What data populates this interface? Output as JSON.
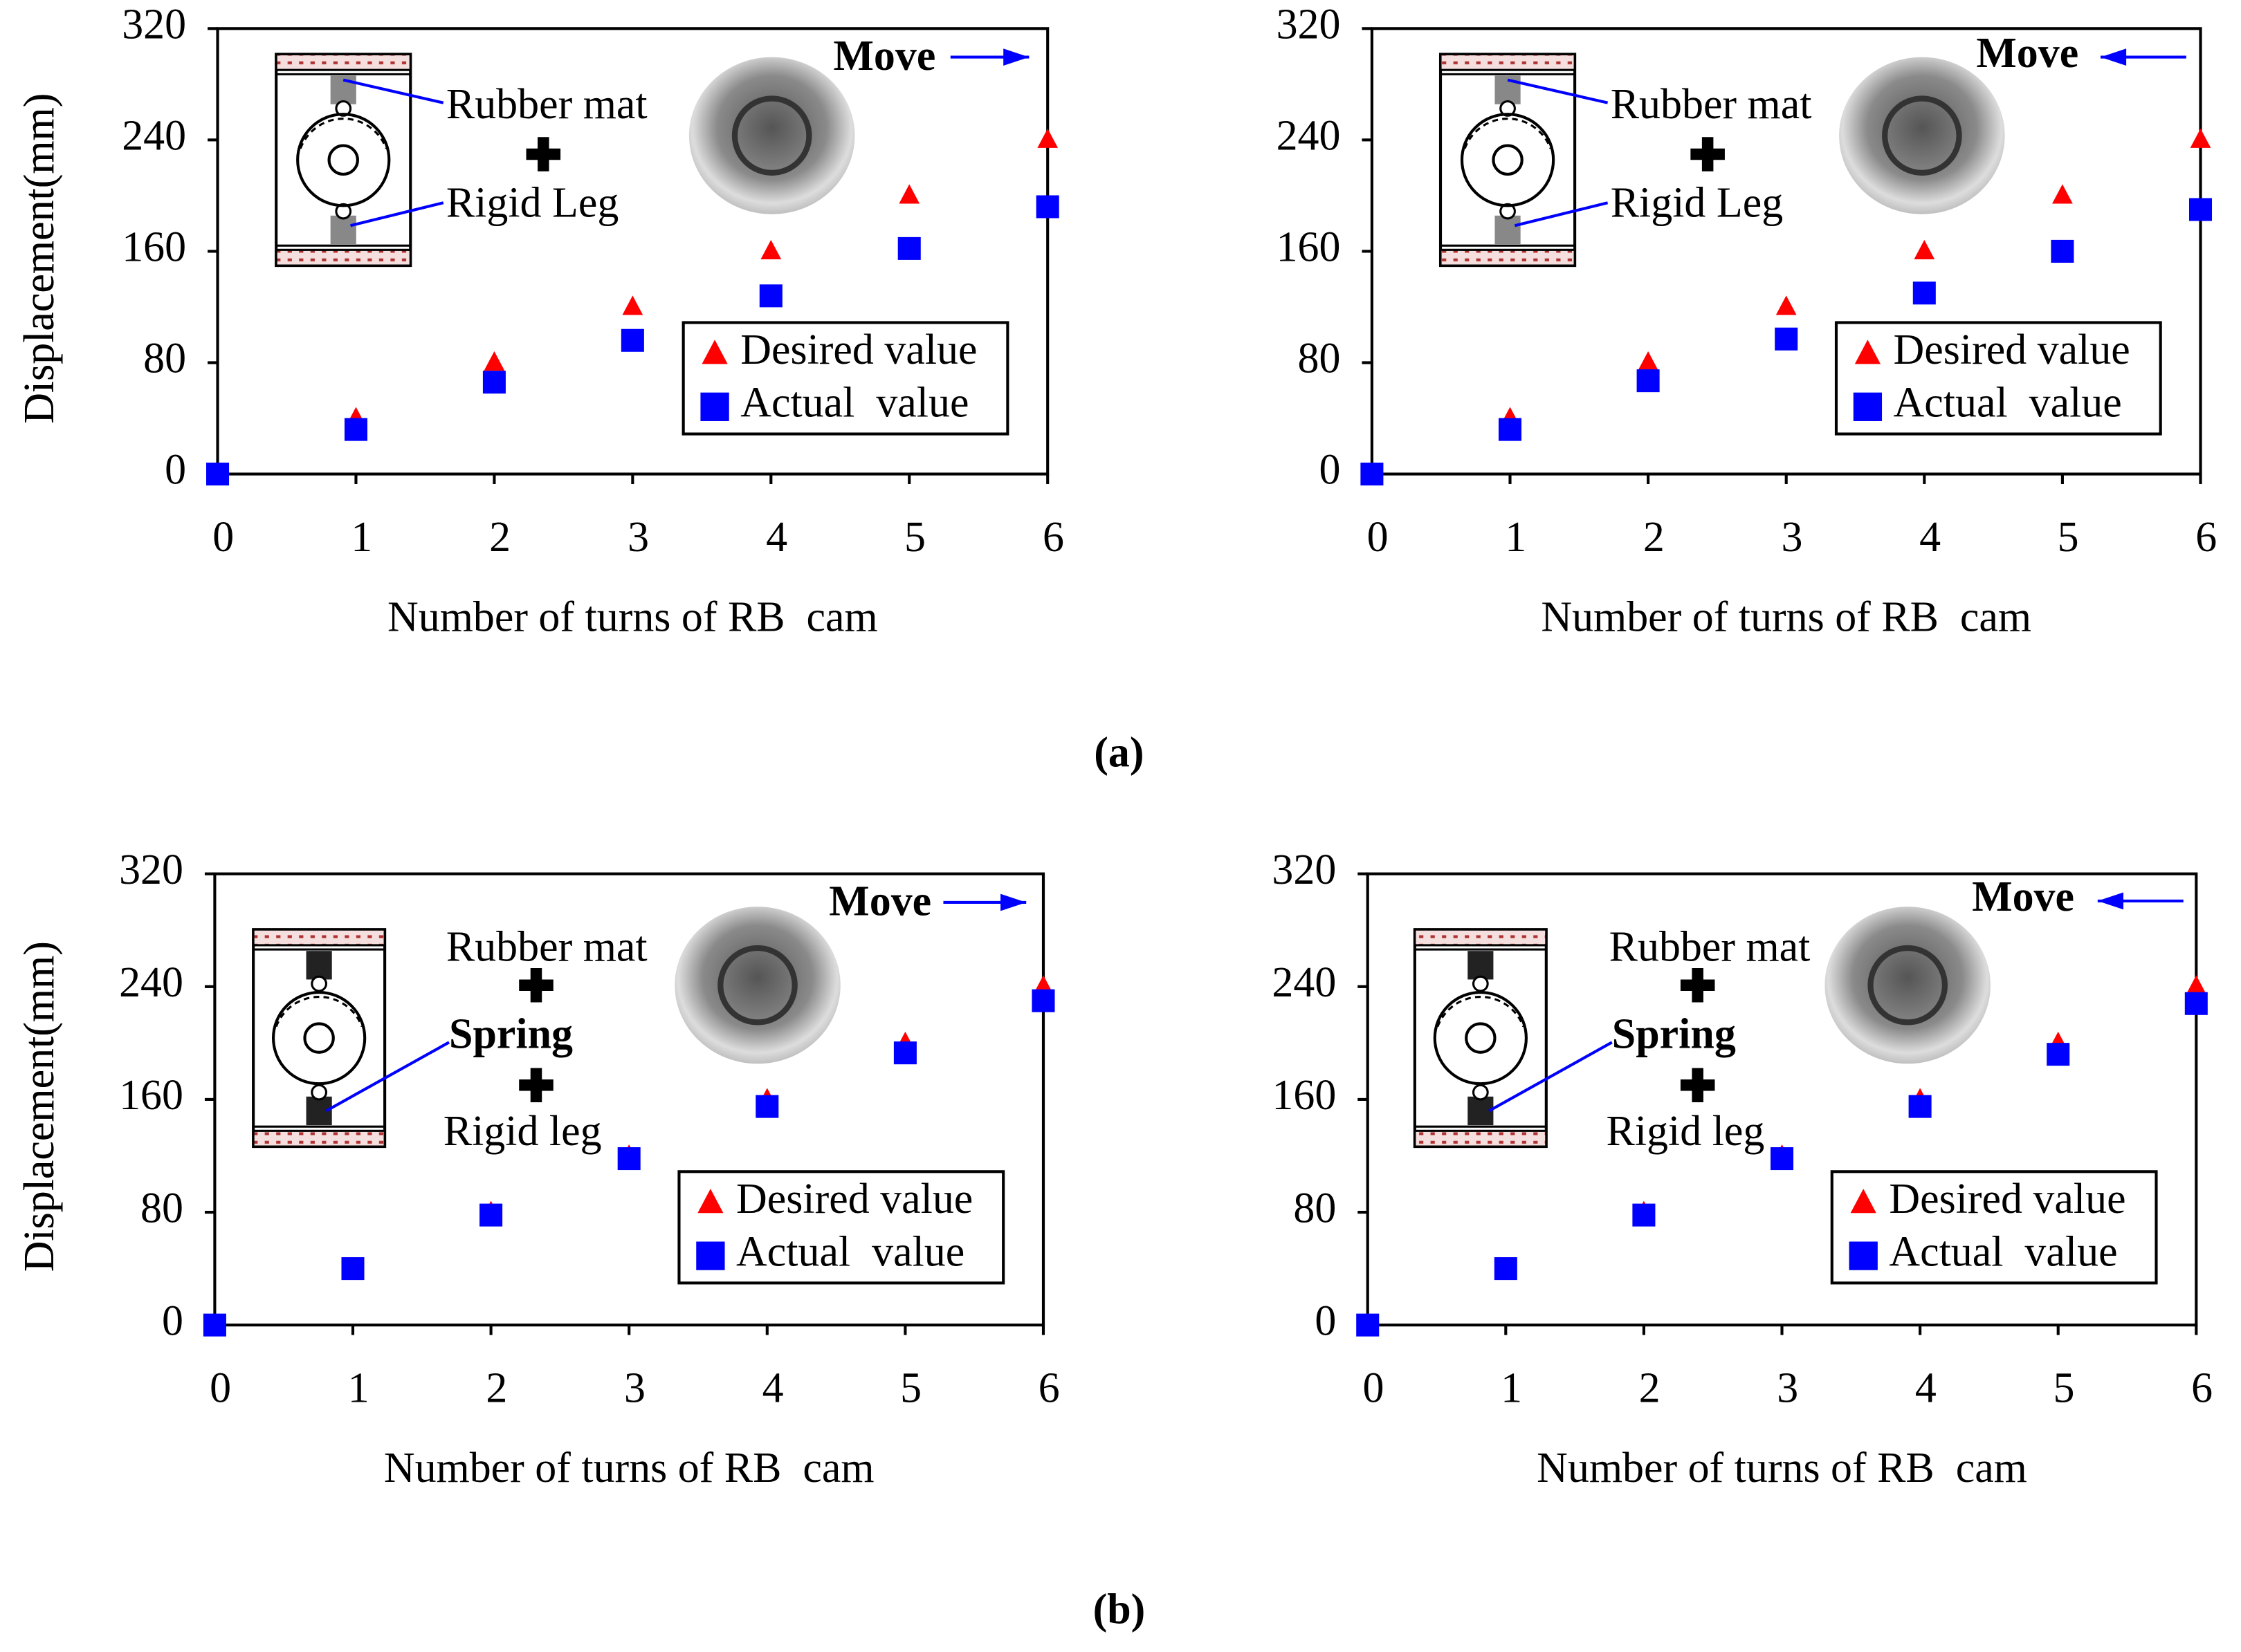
{
  "chart_data": [
    {
      "type": "scatter",
      "xlabel": "Number of turns of RB  cam",
      "ylabel": "Displacement(mm)",
      "x": [
        0,
        1,
        2,
        3,
        4,
        5,
        6
      ],
      "xlim": [
        0,
        6
      ],
      "xticks": [
        0,
        1,
        2,
        3,
        4,
        5,
        6
      ],
      "ylim": [
        0,
        320
      ],
      "yticks": [
        0,
        80,
        160,
        240,
        320
      ],
      "legend": "right",
      "series": [
        {
          "name": "Desired value",
          "color": "#ff0000",
          "marker": "triangle",
          "values": [
            0,
            40,
            80,
            120,
            160,
            200,
            240
          ]
        },
        {
          "name": "Actual  value",
          "color": "#0000ff",
          "marker": "square",
          "values": [
            0,
            32,
            66,
            96,
            128,
            162,
            192
          ]
        }
      ],
      "annotations": [
        {
          "text": "Rubber mat"
        },
        {
          "text": "Rigid Leg"
        },
        {
          "text": "Move",
          "bold": true
        }
      ]
    },
    {
      "type": "scatter",
      "xlabel": "Number of turns of RB  cam",
      "ylabel": "Displacement(mm)",
      "x": [
        0,
        1,
        2,
        3,
        4,
        5,
        6
      ],
      "xlim": [
        0,
        6
      ],
      "xticks": [
        0,
        1,
        2,
        3,
        4,
        5,
        6
      ],
      "ylim": [
        0,
        320
      ],
      "yticks": [
        0,
        80,
        160,
        240,
        320
      ],
      "legend": "right",
      "series": [
        {
          "name": "Desired value",
          "color": "#ff0000",
          "marker": "triangle",
          "values": [
            0,
            40,
            80,
            120,
            160,
            200,
            240
          ]
        },
        {
          "name": "Actual  value",
          "color": "#0000ff",
          "marker": "square",
          "values": [
            0,
            32,
            67,
            97,
            130,
            160,
            190
          ]
        }
      ],
      "annotations": [
        {
          "text": "Rubber mat"
        },
        {
          "text": "Rigid Leg"
        },
        {
          "text": "Move",
          "bold": true
        }
      ]
    },
    {
      "type": "scatter",
      "xlabel": "Number of turns of RB  cam",
      "ylabel": "Displacement(mm)",
      "x": [
        0,
        1,
        2,
        3,
        4,
        5,
        6
      ],
      "xlim": [
        0,
        6
      ],
      "xticks": [
        0,
        1,
        2,
        3,
        4,
        5,
        6
      ],
      "ylim": [
        0,
        320
      ],
      "yticks": [
        0,
        80,
        160,
        240,
        320
      ],
      "legend": "right",
      "series": [
        {
          "name": "Desired value",
          "color": "#ff0000",
          "marker": "triangle",
          "values": [
            0,
            40,
            80,
            120,
            160,
            200,
            240
          ]
        },
        {
          "name": "Actual  value",
          "color": "#0000ff",
          "marker": "square",
          "values": [
            0,
            40,
            78,
            118,
            155,
            193,
            230
          ]
        }
      ],
      "annotations": [
        {
          "text": "Rubber mat"
        },
        {
          "text": "Spring",
          "color": "#0000ff",
          "bold": true
        },
        {
          "text": "Rigid leg"
        },
        {
          "text": "Move",
          "bold": true
        }
      ]
    },
    {
      "type": "scatter",
      "xlabel": "Number of turns of RB  cam",
      "ylabel": "Displacement(mm)",
      "x": [
        0,
        1,
        2,
        3,
        4,
        5,
        6
      ],
      "xlim": [
        0,
        6
      ],
      "xticks": [
        0,
        1,
        2,
        3,
        4,
        5,
        6
      ],
      "ylim": [
        0,
        320
      ],
      "yticks": [
        0,
        80,
        160,
        240,
        320
      ],
      "legend": "right",
      "series": [
        {
          "name": "Desired value",
          "color": "#ff0000",
          "marker": "triangle",
          "values": [
            0,
            40,
            80,
            120,
            160,
            200,
            240
          ]
        },
        {
          "name": "Actual  value",
          "color": "#0000ff",
          "marker": "square",
          "values": [
            0,
            40,
            78,
            118,
            155,
            192,
            228
          ]
        }
      ],
      "annotations": [
        {
          "text": "Rubber mat"
        },
        {
          "text": "Spring",
          "color": "#0000ff",
          "bold": true
        },
        {
          "text": "Rigid leg"
        },
        {
          "text": "Move",
          "bold": true
        }
      ]
    }
  ],
  "panel_labels": [
    "(a)",
    "(b)"
  ]
}
